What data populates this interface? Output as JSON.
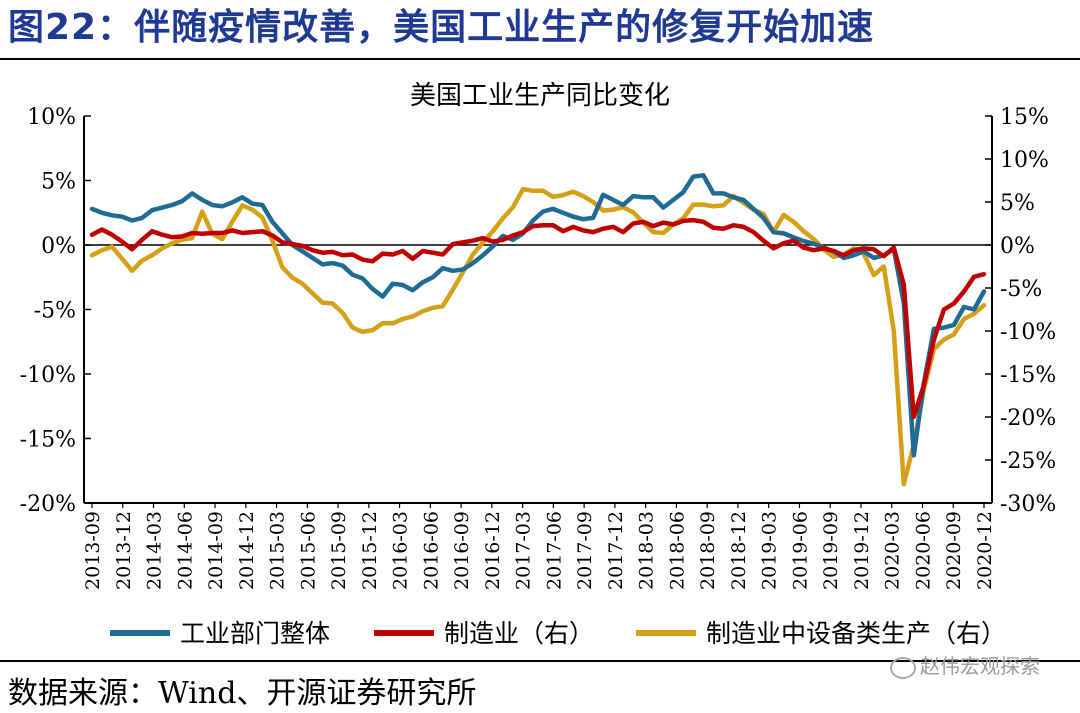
{
  "header": {
    "title": "图22：伴随疫情改善，美国工业生产的修复开始加速"
  },
  "footer": {
    "source": "数据来源：Wind、开源证券研究所",
    "watermark": "赵伟宏观探索",
    "watermark_icon": "wechat-icon"
  },
  "colors": {
    "series1": "#1f6b94",
    "series2": "#c00000",
    "series3": "#d4a017"
  },
  "chart_data": {
    "type": "line",
    "title": "美国工业生产同比变化",
    "x_tick_labels": [
      "2013-09",
      "2013-12",
      "2014-03",
      "2014-06",
      "2014-09",
      "2014-12",
      "2015-03",
      "2015-06",
      "2015-09",
      "2015-12",
      "2016-03",
      "2016-06",
      "2016-09",
      "2016-12",
      "2017-03",
      "2017-06",
      "2017-09",
      "2017-12",
      "2018-03",
      "2018-06",
      "2018-09",
      "2018-12",
      "2019-03",
      "2019-06",
      "2019-09",
      "2019-12",
      "2020-03",
      "2020-06",
      "2020-09",
      "2020-12"
    ],
    "y_left": {
      "min": -20,
      "max": 10,
      "ticks": [
        "10%",
        "5%",
        "0%",
        "-5%",
        "-10%",
        "-15%",
        "-20%"
      ]
    },
    "y_right": {
      "min": -30,
      "max": 15,
      "ticks": [
        "15%",
        "10%",
        "5%",
        "0%",
        "-5%",
        "-10%",
        "-15%",
        "-20%",
        "-25%",
        "-30%"
      ]
    },
    "legend_position": "bottom",
    "series": [
      {
        "name": "工业部门整体",
        "axis": "left",
        "values": [
          2.8,
          2.5,
          2.3,
          2.2,
          1.9,
          2.1,
          2.7,
          2.9,
          3.1,
          3.4,
          4.0,
          3.5,
          3.1,
          3.0,
          3.3,
          3.7,
          3.2,
          3.1,
          1.8,
          0.9,
          0.0,
          -0.5,
          -1.0,
          -1.5,
          -1.4,
          -1.6,
          -2.3,
          -2.6,
          -3.4,
          -4.0,
          -3.0,
          -3.1,
          -3.5,
          -2.9,
          -2.5,
          -1.8,
          -2.0,
          -1.9,
          -1.4,
          -0.8,
          -0.1,
          0.7,
          0.4,
          0.9,
          1.9,
          2.6,
          2.8,
          2.5,
          2.2,
          2.0,
          2.1,
          3.9,
          3.5,
          3.1,
          3.8,
          3.7,
          3.7,
          2.9,
          3.5,
          4.1,
          5.3,
          5.4,
          4.0,
          4.0,
          3.7,
          3.5,
          2.8,
          2.1,
          1.0,
          0.9,
          0.6,
          0.3,
          0.1,
          -0.2,
          -0.5,
          -1.0,
          -0.8,
          -0.5,
          -1.0,
          -0.8,
          -0.3,
          -4.5,
          -16.3,
          -10.7,
          -6.5,
          -6.4,
          -6.2,
          -4.8,
          -5.0,
          -3.6
        ]
      },
      {
        "name": "制造业（右）",
        "axis": "right",
        "values": [
          1.2,
          1.8,
          1.2,
          0.4,
          -0.5,
          0.6,
          1.6,
          1.2,
          0.9,
          1.0,
          1.4,
          1.3,
          1.4,
          1.4,
          1.7,
          1.4,
          1.5,
          1.6,
          1.1,
          0.3,
          0.1,
          -0.1,
          -0.6,
          -0.9,
          -0.8,
          -1.2,
          -1.1,
          -1.7,
          -1.9,
          -1.0,
          -1.1,
          -0.7,
          -1.6,
          -0.7,
          -0.9,
          -1.1,
          0.1,
          0.3,
          0.5,
          0.8,
          0.4,
          0.6,
          1.1,
          1.5,
          2.2,
          2.3,
          2.3,
          1.6,
          2.1,
          1.7,
          1.5,
          1.9,
          2.1,
          1.5,
          2.5,
          2.7,
          2.2,
          2.6,
          2.4,
          2.8,
          2.9,
          2.7,
          2.0,
          1.9,
          2.3,
          2.1,
          1.5,
          0.5,
          -0.4,
          0.2,
          0.5,
          -0.3,
          -0.6,
          -0.4,
          -0.7,
          -1.2,
          -0.6,
          -0.4,
          -0.5,
          -1.3,
          -0.3,
          -4.6,
          -20.0,
          -16.3,
          -11.0,
          -7.5,
          -6.8,
          -5.4,
          -3.7,
          -3.4
        ]
      },
      {
        "name": "制造业中设备类生产（右）",
        "axis": "right",
        "values": [
          -1.2,
          -0.6,
          -0.2,
          -1.6,
          -3.0,
          -1.8,
          -1.2,
          -0.4,
          0.2,
          0.6,
          0.8,
          3.9,
          1.3,
          0.7,
          2.7,
          4.6,
          4.1,
          3.2,
          0.5,
          -2.6,
          -3.8,
          -4.5,
          -5.6,
          -6.7,
          -6.8,
          -7.9,
          -9.6,
          -10.1,
          -9.9,
          -9.1,
          -9.1,
          -8.6,
          -8.3,
          -7.7,
          -7.3,
          -7.1,
          -5.2,
          -3.2,
          -1.1,
          0.3,
          1.6,
          3.1,
          4.4,
          6.5,
          6.3,
          6.3,
          5.6,
          5.8,
          6.2,
          5.7,
          5.0,
          4.0,
          4.1,
          4.4,
          3.8,
          2.6,
          1.5,
          1.4,
          2.4,
          3.1,
          4.7,
          4.7,
          4.5,
          4.6,
          5.7,
          4.9,
          4.1,
          3.6,
          1.5,
          3.5,
          2.7,
          1.6,
          0.7,
          -0.5,
          -1.4,
          -1.1,
          -0.4,
          -1.0,
          -3.5,
          -2.5,
          -10.0,
          -27.8,
          -23.2,
          -16.8,
          -12.1,
          -11.0,
          -10.4,
          -8.6,
          -8.0,
          -7.0
        ]
      }
    ]
  }
}
